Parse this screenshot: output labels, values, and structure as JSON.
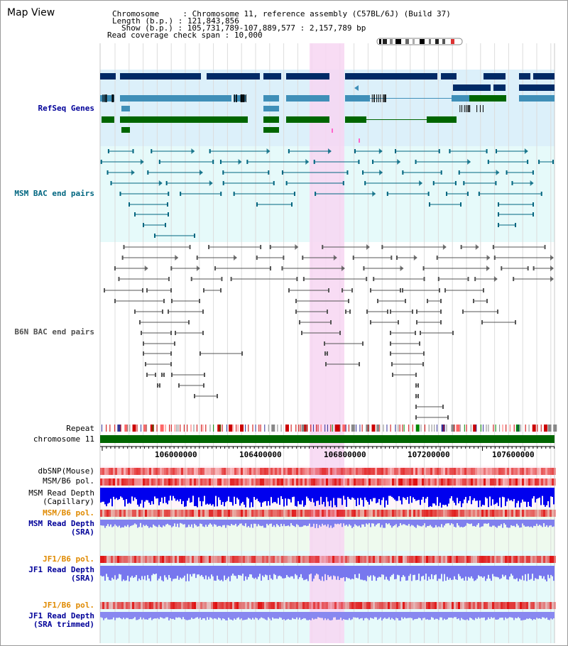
{
  "header": {
    "title": "Map View",
    "chromosome_label": "Chromosome",
    "chromosome_value": "Chromosome 11, reference assembly (C57BL/6J) (Build 37)",
    "length_label": "Length (b.p.)",
    "length_value": "121,843,856",
    "show_label": "Show (b.p.)",
    "show_value": "105,731,789-107,889,577 : 2,157,789 bp",
    "coverage_label": "Read coverage check span",
    "coverage_value": "10,000"
  },
  "tracks": {
    "refseq": "RefSeq Genes",
    "msm_bac": "MSM BAC end pairs",
    "b6n_bac": "B6N BAC end pairs",
    "repeat": "Repeat",
    "chromosome": "chromosome 11",
    "dbsnp": "dbSNP(Mouse)",
    "msm_b6_pol_1": "MSM/B6 pol.",
    "msm_read_depth_cap_1": "MSM Read Depth",
    "msm_read_depth_cap_2": "(Capillary)",
    "msm_b6_pol_2": "MSM/B6 pol.",
    "msm_read_depth_sra_1": "MSM Read Depth",
    "msm_read_depth_sra_2": "(SRA)",
    "jf1_b6_pol_1": "JF1/B6 pol.",
    "jf1_read_depth_sra_1": "JF1 Read Depth",
    "jf1_read_depth_sra_2": "(SRA)",
    "jf1_b6_pol_2": "JF1/B6 pol.",
    "jf1_read_depth_trim_1": "JF1 Read Depth",
    "jf1_read_depth_trim_2": "(SRA trimmed)"
  },
  "axis": {
    "ticks": [
      "106000000",
      "106400000",
      "106800000",
      "107200000",
      "107600000"
    ]
  },
  "colors": {
    "refseq_label": "#000099",
    "msm_bac_label": "#006680",
    "b6n_bac_label": "#505050",
    "orange_label": "#e08a00",
    "blue_label": "#000099",
    "highlight": "#f7d6f2",
    "gene_dark": "#002a66",
    "gene_mid": "#3f8fb8",
    "gene_green": "#006600",
    "bac_msm": "#006680",
    "bac_b6n": "#555555",
    "chrom_bar": "#006600"
  }
}
